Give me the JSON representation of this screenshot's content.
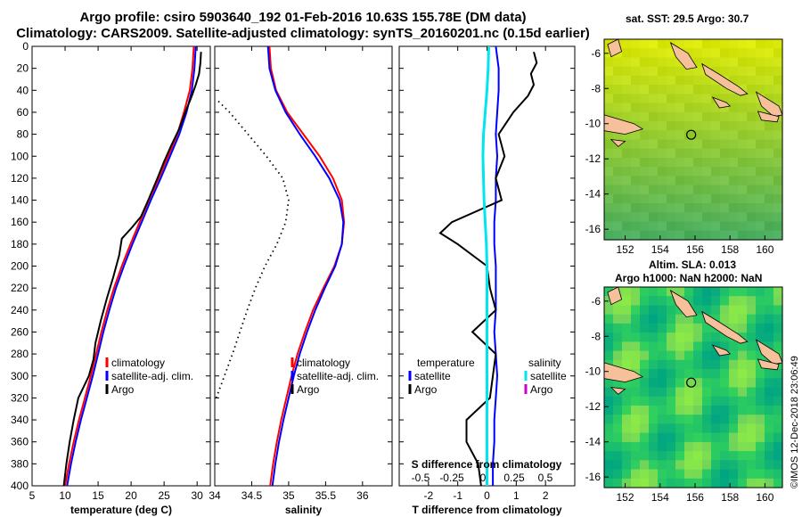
{
  "header": {
    "title_line1": "Argo profile: csiro 5903640_192 01-Feb-2016 10.63S 155.78E (DM data)",
    "title_line2": "Climatology: CARS2009. Satellite-adjusted climatology: synTS_20160201.nc (0.15d earlier)"
  },
  "maps": {
    "sst_title": "sat. SST: 29.5 Argo: 30.7",
    "sla_title_line1": "Altim. SLA: 0.013",
    "sla_title_line2": "Argo h1000: NaN h2000: NaN",
    "lon_ticks": [
      "152",
      "154",
      "156",
      "158",
      "160"
    ],
    "lat_ticks": [
      "-6",
      "-8",
      "-10",
      "-12",
      "-14",
      "-16"
    ],
    "lon_values": [
      152,
      154,
      156,
      158,
      160
    ],
    "lat_values": [
      -6,
      -8,
      -10,
      -12,
      -14,
      -16
    ],
    "argo_position": {
      "lon": 155.78,
      "lat": -10.63
    }
  },
  "credit": "©IMOS 12-Dec-2018 23:06:49",
  "colors": {
    "climatology": "#ff0000",
    "satellite": "#0000ff",
    "argo": "#000000",
    "satellite_salinity": "#00e5ee",
    "argo_salinity": "#cc00cc",
    "land": "#f5c09a",
    "sst_base": "#c8e000",
    "sla_base": "#33cc66"
  },
  "chart_data": [
    {
      "type": "line",
      "name": "temperature",
      "xlabel": "temperature (deg C)",
      "ylabel": "",
      "xlim": [
        5,
        32
      ],
      "ylim": [
        400,
        0
      ],
      "xticks": [
        "5",
        "10",
        "15",
        "20",
        "25",
        "30"
      ],
      "xtick_values": [
        5,
        10,
        15,
        20,
        25,
        30
      ],
      "yticks": [
        "0",
        "20",
        "40",
        "60",
        "80",
        "100",
        "120",
        "140",
        "160",
        "180",
        "200",
        "220",
        "240",
        "260",
        "280",
        "300",
        "320",
        "340",
        "360",
        "380",
        "400"
      ],
      "ytick_values": [
        0,
        20,
        40,
        60,
        80,
        100,
        120,
        140,
        160,
        180,
        200,
        220,
        240,
        260,
        280,
        300,
        320,
        340,
        360,
        380,
        400
      ],
      "legend": [
        "climatology",
        "satellite-adj. clim.",
        "Argo"
      ],
      "legend_position": "lower-right",
      "series": [
        {
          "name": "climatology",
          "color": "#ff0000",
          "depth": [
            0,
            20,
            40,
            60,
            80,
            100,
            120,
            140,
            160,
            180,
            200,
            220,
            240,
            260,
            280,
            300,
            320,
            340,
            360,
            380,
            400
          ],
          "values": [
            29.5,
            29.3,
            28.9,
            28.0,
            27.0,
            25.6,
            24.2,
            22.7,
            21.3,
            19.9,
            18.6,
            17.4,
            16.4,
            15.5,
            14.7,
            13.9,
            13.0,
            12.1,
            11.3,
            10.6,
            10.0
          ]
        },
        {
          "name": "satellite-adj. clim.",
          "color": "#0000ff",
          "depth": [
            0,
            20,
            40,
            60,
            80,
            100,
            120,
            140,
            160,
            180,
            200,
            220,
            240,
            260,
            280,
            300,
            320,
            340,
            360,
            380,
            400
          ],
          "values": [
            29.8,
            29.6,
            29.2,
            28.4,
            27.3,
            25.9,
            24.5,
            23.0,
            21.6,
            20.2,
            18.9,
            17.7,
            16.7,
            15.8,
            15.0,
            14.2,
            13.3,
            12.4,
            11.6,
            10.9,
            10.3
          ]
        },
        {
          "name": "Argo",
          "color": "#000000",
          "depth": [
            5,
            15,
            25,
            35,
            45,
            60,
            75,
            90,
            105,
            120,
            140,
            155,
            165,
            175,
            190,
            210,
            230,
            250,
            260,
            270,
            285,
            300,
            320,
            340,
            360,
            380,
            400
          ],
          "values": [
            30.6,
            30.5,
            30.3,
            29.8,
            29.2,
            28.2,
            27.3,
            26.1,
            25.0,
            24.0,
            22.6,
            21.5,
            20.1,
            18.6,
            18.2,
            17.3,
            16.3,
            15.4,
            15.0,
            14.6,
            14.3,
            13.6,
            12.0,
            11.3,
            10.7,
            10.2,
            9.8
          ]
        }
      ]
    },
    {
      "type": "line",
      "name": "salinity",
      "xlabel": "salinity",
      "xlim": [
        34,
        36.4
      ],
      "ylim": [
        400,
        0
      ],
      "xticks": [
        "34",
        "34.5",
        "35",
        "35.5",
        "36"
      ],
      "xtick_values": [
        34,
        34.5,
        35,
        35.5,
        36
      ],
      "legend": [
        "climatology",
        "satellite-adj. clim.",
        "Argo"
      ],
      "legend_position": "lower-right",
      "series": [
        {
          "name": "climatology",
          "color": "#ff0000",
          "depth": [
            0,
            20,
            40,
            60,
            80,
            100,
            120,
            140,
            160,
            180,
            200,
            220,
            240,
            260,
            280,
            300,
            320,
            340,
            360,
            380,
            400
          ],
          "values": [
            34.74,
            34.76,
            34.83,
            34.98,
            35.2,
            35.42,
            35.6,
            35.72,
            35.75,
            35.72,
            35.62,
            35.47,
            35.33,
            35.22,
            35.12,
            35.04,
            34.97,
            34.9,
            34.84,
            34.79,
            34.75
          ]
        },
        {
          "name": "satellite-adj. clim.",
          "color": "#0000ff",
          "depth": [
            0,
            20,
            40,
            60,
            80,
            100,
            120,
            140,
            160,
            180,
            200,
            220,
            240,
            260,
            280,
            300,
            320,
            340,
            360,
            380,
            400
          ],
          "values": [
            34.72,
            34.74,
            34.82,
            34.96,
            35.15,
            35.36,
            35.55,
            35.69,
            35.74,
            35.72,
            35.63,
            35.49,
            35.36,
            35.25,
            35.15,
            35.07,
            35.0,
            34.93,
            34.87,
            34.82,
            34.78
          ]
        },
        {
          "name": "Argo",
          "color": "#000000",
          "dotted": true,
          "depth": [
            50,
            60,
            80,
            100,
            120,
            140,
            160,
            180,
            200,
            220,
            240,
            260,
            280,
            300,
            320
          ],
          "values": [
            34.05,
            34.2,
            34.45,
            34.7,
            34.92,
            35.0,
            34.96,
            34.84,
            34.68,
            34.55,
            34.44,
            34.34,
            34.24,
            34.13,
            34.02
          ]
        }
      ]
    },
    {
      "type": "line",
      "name": "difference from climatology",
      "xlabel": "T difference from climatology",
      "top_xlabel": "S difference from climatology",
      "xlim": [
        -3,
        3
      ],
      "ylim": [
        400,
        0
      ],
      "xticks": [
        "-2",
        "-1",
        "0",
        "1",
        "2"
      ],
      "xtick_values": [
        -2,
        -1,
        0,
        1,
        2
      ],
      "s_xticks": [
        "-0.5",
        "-0.25",
        "0",
        "0.25",
        "0.5"
      ],
      "s_xtick_values": [
        -0.5,
        -0.25,
        0,
        0.25,
        0.5
      ],
      "legend_temperature_title": "temperature",
      "legend_salinity_title": "salinity",
      "legend_temperature": [
        "satellite",
        "Argo"
      ],
      "legend_salinity": [
        "satellite",
        "Argo"
      ],
      "legend_position": "lower-left and lower-right",
      "series": [
        {
          "name": "T satellite",
          "color": "#0000ff",
          "depth": [
            0,
            20,
            40,
            60,
            80,
            100,
            120,
            140,
            160,
            180,
            200,
            220,
            240,
            260,
            280,
            300,
            320,
            340,
            360,
            380,
            400
          ],
          "values": [
            0.3,
            0.4,
            0.4,
            0.35,
            0.3,
            0.35,
            0.3,
            0.3,
            0.25,
            0.25,
            0.3,
            0.3,
            0.3,
            0.25,
            0.3,
            0.35,
            0.3,
            0.25,
            0.25,
            0.2,
            0.2
          ]
        },
        {
          "name": "T Argo",
          "color": "#000000",
          "depth": [
            5,
            15,
            25,
            35,
            45,
            60,
            80,
            100,
            120,
            140,
            160,
            170,
            180,
            200,
            220,
            240,
            260,
            280,
            300,
            320,
            340,
            360,
            380,
            400
          ],
          "values": [
            1.6,
            1.7,
            1.5,
            1.6,
            1.4,
            0.9,
            0.4,
            0.6,
            0.3,
            0.5,
            -1.2,
            -1.6,
            -1.0,
            0.0,
            0.1,
            0.3,
            -0.5,
            0.3,
            0.2,
            0.1,
            -0.7,
            -0.7,
            -0.3,
            -0.2
          ]
        },
        {
          "name": "S satellite",
          "color": "#00e5ee",
          "depth": [
            0,
            20,
            40,
            60,
            80,
            100,
            120,
            140,
            160,
            180,
            200,
            220,
            240,
            260,
            280,
            300,
            320,
            340,
            360,
            380,
            400
          ],
          "values": [
            0.06,
            0.04,
            0.0,
            -0.06,
            -0.12,
            -0.14,
            -0.12,
            -0.1,
            -0.06,
            -0.02,
            0.0,
            0.0,
            0.0,
            0.0,
            0.0,
            0.0,
            0.0,
            0.0,
            0.0,
            0.0,
            0.0
          ]
        }
      ]
    }
  ]
}
